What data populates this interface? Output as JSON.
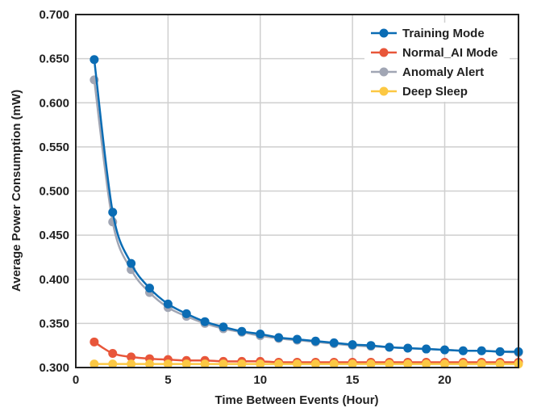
{
  "chart_data": {
    "type": "line",
    "title": "",
    "xlabel": "Time Between Events (Hour)",
    "ylabel": "Average Power Consumption (mW)",
    "xlim": [
      0,
      24
    ],
    "ylim": [
      0.3,
      0.7
    ],
    "xticks": [
      0,
      5,
      10,
      15,
      20
    ],
    "yticks": [
      "0.300",
      "0.350",
      "0.400",
      "0.450",
      "0.500",
      "0.550",
      "0.600",
      "0.650",
      "0.700"
    ],
    "grid": true,
    "legend_position": "top-right",
    "x": [
      1,
      2,
      3,
      4,
      5,
      6,
      7,
      8,
      9,
      10,
      11,
      12,
      13,
      14,
      15,
      16,
      17,
      18,
      19,
      20,
      21,
      22,
      23,
      24
    ],
    "series": [
      {
        "name": "Training Mode",
        "color": "#0a6cb4",
        "values": [
          0.649,
          0.476,
          0.418,
          0.39,
          0.372,
          0.361,
          0.352,
          0.346,
          0.341,
          0.338,
          0.334,
          0.332,
          0.33,
          0.328,
          0.326,
          0.325,
          0.323,
          0.322,
          0.321,
          0.32,
          0.319,
          0.319,
          0.318,
          0.318
        ]
      },
      {
        "name": "Normal_AI Mode",
        "color": "#e8563a",
        "values": [
          0.329,
          0.316,
          0.312,
          0.31,
          0.309,
          0.308,
          0.308,
          0.307,
          0.307,
          0.307,
          0.306,
          0.306,
          0.306,
          0.306,
          0.306,
          0.306,
          0.306,
          0.306,
          0.306,
          0.306,
          0.306,
          0.306,
          0.306,
          0.306
        ]
      },
      {
        "name": "Anomaly Alert",
        "color": "#a1a6b4",
        "values": [
          0.626,
          0.465,
          0.411,
          0.385,
          0.368,
          0.358,
          0.35,
          0.344,
          0.34,
          0.336,
          0.333,
          0.331,
          0.329,
          0.327,
          0.325,
          0.324,
          0.323,
          0.322,
          0.321,
          0.32,
          0.319,
          0.319,
          0.318,
          0.317
        ]
      },
      {
        "name": "Deep Sleep",
        "color": "#fcc843",
        "values": [
          0.304,
          0.304,
          0.304,
          0.304,
          0.304,
          0.304,
          0.304,
          0.304,
          0.304,
          0.304,
          0.304,
          0.304,
          0.304,
          0.304,
          0.304,
          0.304,
          0.304,
          0.304,
          0.304,
          0.304,
          0.304,
          0.304,
          0.304,
          0.304
        ]
      }
    ]
  }
}
